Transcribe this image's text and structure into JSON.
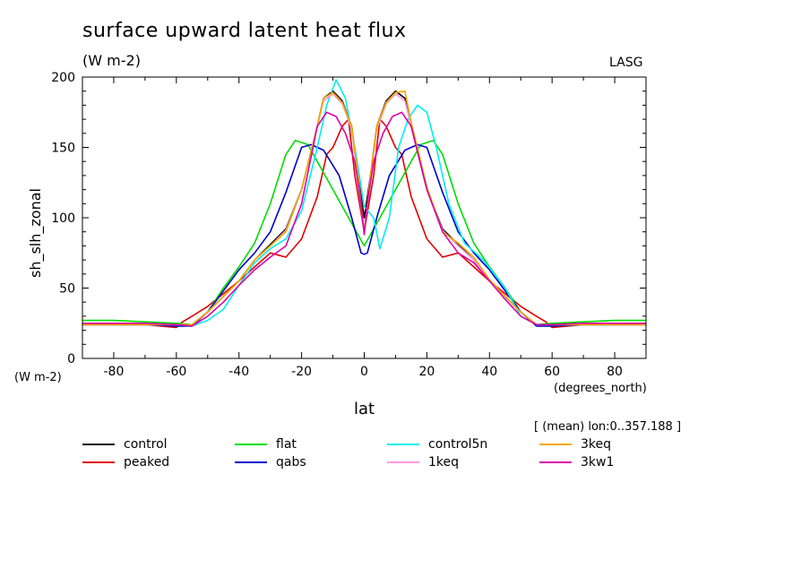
{
  "title": "surface upward latent heat flux",
  "units_top": "(W m-2)",
  "corner_label": "LASG",
  "units_left": "(W m-2)",
  "x_units": "(degrees_north)",
  "mean_note": "[ (mean) lon:0..357.188 ]",
  "chart_data": {
    "type": "line",
    "xlabel": "lat",
    "ylabel": "sh_slh_zonal",
    "xlim": [
      -90,
      90
    ],
    "ylim": [
      0,
      200
    ],
    "x_ticks": [
      -80,
      -60,
      -40,
      -20,
      0,
      20,
      40,
      60,
      80
    ],
    "y_ticks": [
      0,
      50,
      100,
      150,
      200
    ],
    "grid": false,
    "legend_position": "bottom",
    "series": [
      {
        "name": "control",
        "color": "#000000",
        "points": [
          [
            -90,
            24
          ],
          [
            -80,
            24
          ],
          [
            -70,
            24
          ],
          [
            -60,
            24
          ],
          [
            -55,
            24
          ],
          [
            -50,
            33
          ],
          [
            -45,
            44
          ],
          [
            -40,
            55
          ],
          [
            -35,
            70
          ],
          [
            -30,
            81
          ],
          [
            -25,
            92
          ],
          [
            -20,
            120
          ],
          [
            -15,
            165
          ],
          [
            -13,
            185
          ],
          [
            -10,
            190
          ],
          [
            -7,
            183
          ],
          [
            -4,
            165
          ],
          [
            -2,
            130
          ],
          [
            0,
            100
          ],
          [
            2,
            130
          ],
          [
            4,
            165
          ],
          [
            7,
            183
          ],
          [
            10,
            190
          ],
          [
            13,
            185
          ],
          [
            15,
            165
          ],
          [
            20,
            120
          ],
          [
            25,
            92
          ],
          [
            30,
            81
          ],
          [
            35,
            70
          ],
          [
            40,
            55
          ],
          [
            45,
            44
          ],
          [
            50,
            33
          ],
          [
            55,
            24
          ],
          [
            60,
            24
          ],
          [
            70,
            24
          ],
          [
            80,
            24
          ],
          [
            90,
            24
          ]
        ]
      },
      {
        "name": "peaked",
        "color": "#e00000",
        "points": [
          [
            -90,
            24
          ],
          [
            -80,
            24
          ],
          [
            -70,
            24
          ],
          [
            -60,
            22
          ],
          [
            -58,
            26
          ],
          [
            -55,
            30
          ],
          [
            -50,
            37
          ],
          [
            -45,
            46
          ],
          [
            -40,
            55
          ],
          [
            -35,
            65
          ],
          [
            -30,
            75
          ],
          [
            -25,
            72
          ],
          [
            -20,
            85
          ],
          [
            -15,
            115
          ],
          [
            -12,
            145
          ],
          [
            -10,
            150
          ],
          [
            -7,
            165
          ],
          [
            -5,
            170
          ],
          [
            -3,
            130
          ],
          [
            0,
            90
          ],
          [
            3,
            130
          ],
          [
            5,
            170
          ],
          [
            7,
            165
          ],
          [
            10,
            150
          ],
          [
            12,
            145
          ],
          [
            15,
            115
          ],
          [
            20,
            85
          ],
          [
            25,
            72
          ],
          [
            30,
            75
          ],
          [
            35,
            65
          ],
          [
            40,
            55
          ],
          [
            45,
            46
          ],
          [
            50,
            37
          ],
          [
            55,
            30
          ],
          [
            58,
            26
          ],
          [
            60,
            22
          ],
          [
            70,
            24
          ],
          [
            80,
            24
          ],
          [
            90,
            24
          ]
        ]
      },
      {
        "name": "flat",
        "color": "#00dd00",
        "points": [
          [
            -90,
            27
          ],
          [
            -80,
            27
          ],
          [
            -70,
            26
          ],
          [
            -60,
            25
          ],
          [
            -55,
            24
          ],
          [
            -50,
            33
          ],
          [
            -45,
            50
          ],
          [
            -40,
            65
          ],
          [
            -35,
            82
          ],
          [
            -30,
            110
          ],
          [
            -25,
            145
          ],
          [
            -22,
            155
          ],
          [
            -18,
            152
          ],
          [
            -15,
            140
          ],
          [
            -10,
            120
          ],
          [
            -5,
            100
          ],
          [
            0,
            80
          ],
          [
            5,
            100
          ],
          [
            10,
            120
          ],
          [
            15,
            140
          ],
          [
            18,
            152
          ],
          [
            22,
            155
          ],
          [
            25,
            145
          ],
          [
            30,
            110
          ],
          [
            35,
            82
          ],
          [
            40,
            65
          ],
          [
            45,
            50
          ],
          [
            50,
            33
          ],
          [
            55,
            24
          ],
          [
            60,
            25
          ],
          [
            70,
            26
          ],
          [
            80,
            27
          ],
          [
            90,
            27
          ]
        ]
      },
      {
        "name": "qabs",
        "color": "#0000cc",
        "points": [
          [
            -90,
            24
          ],
          [
            -80,
            24
          ],
          [
            -70,
            24
          ],
          [
            -60,
            23
          ],
          [
            -55,
            23
          ],
          [
            -50,
            33
          ],
          [
            -45,
            48
          ],
          [
            -40,
            63
          ],
          [
            -35,
            75
          ],
          [
            -30,
            90
          ],
          [
            -25,
            118
          ],
          [
            -20,
            150
          ],
          [
            -17,
            152
          ],
          [
            -13,
            148
          ],
          [
            -8,
            130
          ],
          [
            -4,
            100
          ],
          [
            -1,
            75
          ],
          [
            0,
            74
          ],
          [
            1,
            75
          ],
          [
            4,
            100
          ],
          [
            8,
            130
          ],
          [
            13,
            148
          ],
          [
            17,
            152
          ],
          [
            20,
            150
          ],
          [
            25,
            118
          ],
          [
            30,
            90
          ],
          [
            35,
            75
          ],
          [
            40,
            63
          ],
          [
            45,
            48
          ],
          [
            50,
            33
          ],
          [
            55,
            23
          ],
          [
            60,
            23
          ],
          [
            70,
            24
          ],
          [
            80,
            24
          ],
          [
            90,
            24
          ]
        ]
      },
      {
        "name": "control5n",
        "color": "#00eeee",
        "points": [
          [
            -90,
            24
          ],
          [
            -80,
            24
          ],
          [
            -70,
            24
          ],
          [
            -60,
            24
          ],
          [
            -55,
            23
          ],
          [
            -50,
            27
          ],
          [
            -45,
            35
          ],
          [
            -40,
            52
          ],
          [
            -35,
            68
          ],
          [
            -30,
            78
          ],
          [
            -25,
            85
          ],
          [
            -20,
            105
          ],
          [
            -15,
            150
          ],
          [
            -12,
            180
          ],
          [
            -9,
            198
          ],
          [
            -6,
            185
          ],
          [
            -3,
            150
          ],
          [
            0,
            108
          ],
          [
            3,
            100
          ],
          [
            5,
            78
          ],
          [
            8,
            100
          ],
          [
            11,
            150
          ],
          [
            14,
            170
          ],
          [
            17,
            180
          ],
          [
            20,
            175
          ],
          [
            23,
            150
          ],
          [
            27,
            110
          ],
          [
            32,
            82
          ],
          [
            38,
            70
          ],
          [
            45,
            50
          ],
          [
            50,
            30
          ],
          [
            55,
            24
          ],
          [
            60,
            24
          ],
          [
            70,
            24
          ],
          [
            80,
            24
          ],
          [
            90,
            24
          ]
        ]
      },
      {
        "name": "1keq",
        "color": "#ff99dd",
        "points": [
          [
            -90,
            24
          ],
          [
            -80,
            24
          ],
          [
            -70,
            24
          ],
          [
            -60,
            24
          ],
          [
            -55,
            24
          ],
          [
            -50,
            33
          ],
          [
            -45,
            44
          ],
          [
            -40,
            55
          ],
          [
            -35,
            70
          ],
          [
            -30,
            80
          ],
          [
            -25,
            91
          ],
          [
            -20,
            120
          ],
          [
            -15,
            165
          ],
          [
            -13,
            183
          ],
          [
            -10,
            188
          ],
          [
            -7,
            181
          ],
          [
            -4,
            163
          ],
          [
            -2,
            128
          ],
          [
            0,
            88
          ],
          [
            2,
            128
          ],
          [
            4,
            163
          ],
          [
            7,
            181
          ],
          [
            10,
            188
          ],
          [
            13,
            183
          ],
          [
            15,
            165
          ],
          [
            20,
            120
          ],
          [
            25,
            91
          ],
          [
            30,
            80
          ],
          [
            35,
            70
          ],
          [
            40,
            55
          ],
          [
            45,
            44
          ],
          [
            50,
            33
          ],
          [
            55,
            24
          ],
          [
            60,
            24
          ],
          [
            70,
            24
          ],
          [
            80,
            24
          ],
          [
            90,
            24
          ]
        ]
      },
      {
        "name": "3keq",
        "color": "#f0a800",
        "points": [
          [
            -90,
            24
          ],
          [
            -80,
            24
          ],
          [
            -70,
            24
          ],
          [
            -60,
            24
          ],
          [
            -55,
            24
          ],
          [
            -50,
            33
          ],
          [
            -45,
            44
          ],
          [
            -40,
            55
          ],
          [
            -35,
            70
          ],
          [
            -30,
            80
          ],
          [
            -25,
            90
          ],
          [
            -20,
            120
          ],
          [
            -15,
            165
          ],
          [
            -13,
            185
          ],
          [
            -10,
            189
          ],
          [
            -7,
            182
          ],
          [
            -4,
            165
          ],
          [
            -2,
            130
          ],
          [
            0,
            90
          ],
          [
            2,
            130
          ],
          [
            4,
            165
          ],
          [
            7,
            182
          ],
          [
            10,
            189
          ],
          [
            13,
            190
          ],
          [
            15,
            168
          ],
          [
            20,
            122
          ],
          [
            25,
            90
          ],
          [
            30,
            82
          ],
          [
            35,
            72
          ],
          [
            40,
            56
          ],
          [
            45,
            44
          ],
          [
            50,
            33
          ],
          [
            55,
            24
          ],
          [
            60,
            24
          ],
          [
            70,
            24
          ],
          [
            80,
            24
          ],
          [
            90,
            24
          ]
        ]
      },
      {
        "name": "3kw1",
        "color": "#dd00aa",
        "points": [
          [
            -90,
            25
          ],
          [
            -80,
            25
          ],
          [
            -70,
            25
          ],
          [
            -60,
            24
          ],
          [
            -55,
            23
          ],
          [
            -50,
            30
          ],
          [
            -45,
            40
          ],
          [
            -40,
            52
          ],
          [
            -35,
            63
          ],
          [
            -30,
            72
          ],
          [
            -25,
            80
          ],
          [
            -20,
            110
          ],
          [
            -15,
            165
          ],
          [
            -12,
            175
          ],
          [
            -9,
            172
          ],
          [
            -6,
            160
          ],
          [
            -3,
            140
          ],
          [
            -1,
            110
          ],
          [
            0,
            88
          ],
          [
            1,
            110
          ],
          [
            3,
            140
          ],
          [
            6,
            160
          ],
          [
            9,
            172
          ],
          [
            12,
            175
          ],
          [
            15,
            165
          ],
          [
            20,
            120
          ],
          [
            25,
            90
          ],
          [
            30,
            75
          ],
          [
            35,
            68
          ],
          [
            40,
            55
          ],
          [
            45,
            42
          ],
          [
            50,
            30
          ],
          [
            55,
            24
          ],
          [
            60,
            24
          ],
          [
            70,
            25
          ],
          [
            80,
            25
          ],
          [
            90,
            25
          ]
        ]
      }
    ]
  }
}
